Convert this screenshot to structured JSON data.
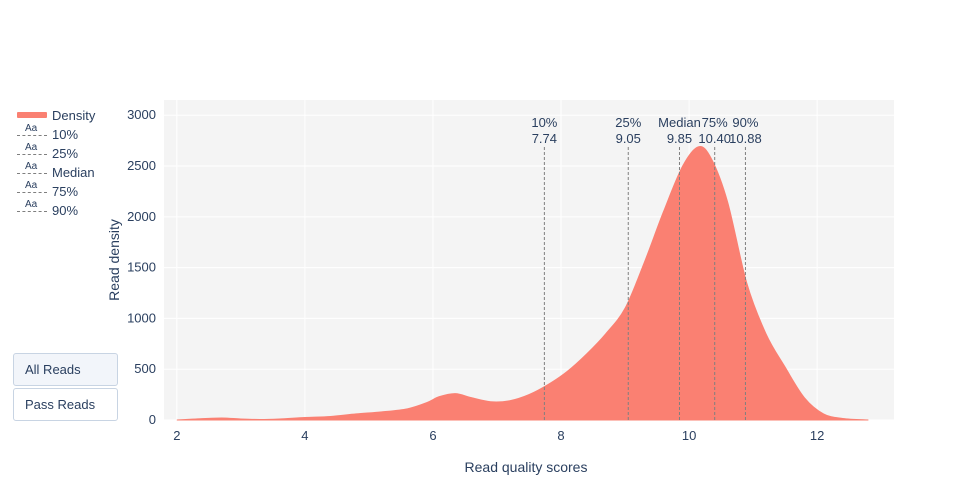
{
  "chart_data": {
    "type": "area",
    "xlabel": "Read quality scores",
    "ylabel": "Read density",
    "xlim": [
      1.8,
      13.2
    ],
    "ylim": [
      0,
      3150
    ],
    "x_ticks": [
      2,
      4,
      6,
      8,
      10,
      12
    ],
    "y_ticks": [
      0,
      500,
      1000,
      1500,
      2000,
      2500,
      3000
    ],
    "grid": true,
    "legend_position": "left",
    "series": [
      {
        "name": "Density",
        "color": "#fa8072",
        "x": [
          2.0,
          2.3,
          2.7,
          3.0,
          3.3,
          3.6,
          4.0,
          4.4,
          4.8,
          5.2,
          5.6,
          5.9,
          6.1,
          6.35,
          6.6,
          6.9,
          7.2,
          7.5,
          7.8,
          8.1,
          8.4,
          8.7,
          9.0,
          9.3,
          9.6,
          9.9,
          10.15,
          10.35,
          10.6,
          10.9,
          11.2,
          11.5,
          11.8,
          12.1,
          12.4,
          12.8
        ],
        "y": [
          0,
          10,
          20,
          10,
          5,
          10,
          25,
          35,
          60,
          80,
          110,
          170,
          230,
          260,
          220,
          180,
          190,
          250,
          350,
          480,
          650,
          850,
          1100,
          1550,
          2050,
          2500,
          2690,
          2570,
          2150,
          1350,
          850,
          520,
          220,
          60,
          15,
          0
        ]
      }
    ],
    "quantiles": [
      {
        "label": "10%",
        "value": "7.74",
        "x": 7.74
      },
      {
        "label": "25%",
        "value": "9.05",
        "x": 9.05
      },
      {
        "label": "Median",
        "value": "9.85",
        "x": 9.85
      },
      {
        "label": "75%",
        "value": "10.40",
        "x": 10.4
      },
      {
        "label": "90%",
        "value": "10.88",
        "x": 10.88
      }
    ]
  },
  "legend": {
    "density": "Density",
    "items": [
      "10%",
      "25%",
      "Median",
      "75%",
      "90%"
    ],
    "marker_text": "Aa"
  },
  "buttons": {
    "all_reads": "All Reads",
    "pass_reads": "Pass Reads"
  },
  "colors": {
    "plot_background": "#f4f4f4",
    "grid": "#ffffff",
    "fill": "#fa8072",
    "quantile_line": "#7f7f7f",
    "text": "#2a3f5f"
  }
}
